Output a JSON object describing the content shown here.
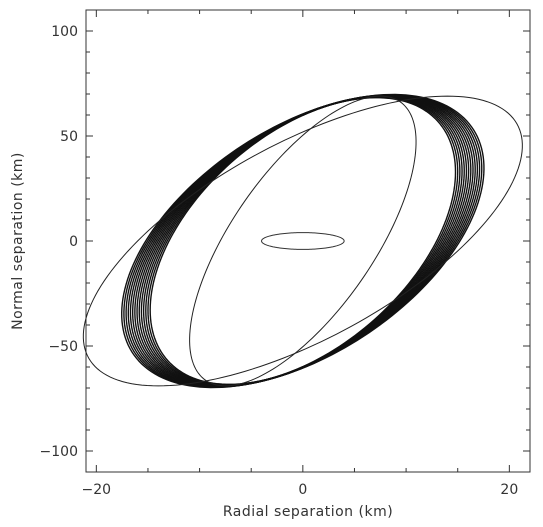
{
  "chart_data": {
    "type": "line",
    "title": "",
    "xlabel": "Radial separation (km)",
    "ylabel": "Normal separation (km)",
    "xlim": [
      -21,
      22
    ],
    "ylim": [
      -110,
      110
    ],
    "grid": false,
    "x_ticks": [
      -20,
      0,
      20
    ],
    "x_tick_labels": [
      "−20",
      "0",
      "20"
    ],
    "y_ticks": [
      100,
      50,
      0,
      -50,
      -100
    ],
    "y_tick_labels": [
      "100",
      "50",
      "0",
      "−50",
      "−100"
    ],
    "series": [
      {
        "shape": "ellipse-band",
        "center": [
          0,
          0
        ],
        "x_extent_km": 15,
        "y_extent_km": 69,
        "top_point": [
          8,
          69
        ],
        "bottom_point": [
          -8.5,
          -69
        ],
        "band_count": 14,
        "color": "#111111"
      },
      {
        "shape": "ellipse",
        "center": [
          0,
          0
        ],
        "x_extent_km": 8,
        "y_extent_km": 69,
        "top_point": [
          7.5,
          69
        ],
        "bottom_point": [
          -7.5,
          -69
        ],
        "color": "#222222"
      },
      {
        "shape": "ellipse",
        "center": [
          0,
          0
        ],
        "x_extent_km": 16,
        "y_extent_km": 69,
        "top_point": [
          14,
          69
        ],
        "bottom_point": [
          -7,
          -69
        ],
        "color": "#222222"
      },
      {
        "shape": "ellipse",
        "center": [
          0,
          0
        ],
        "x_extent_km": 4,
        "y_extent_km": 4,
        "top_point": [
          0,
          4
        ],
        "bottom_point": [
          0,
          -4
        ],
        "color": "#333333"
      }
    ]
  }
}
